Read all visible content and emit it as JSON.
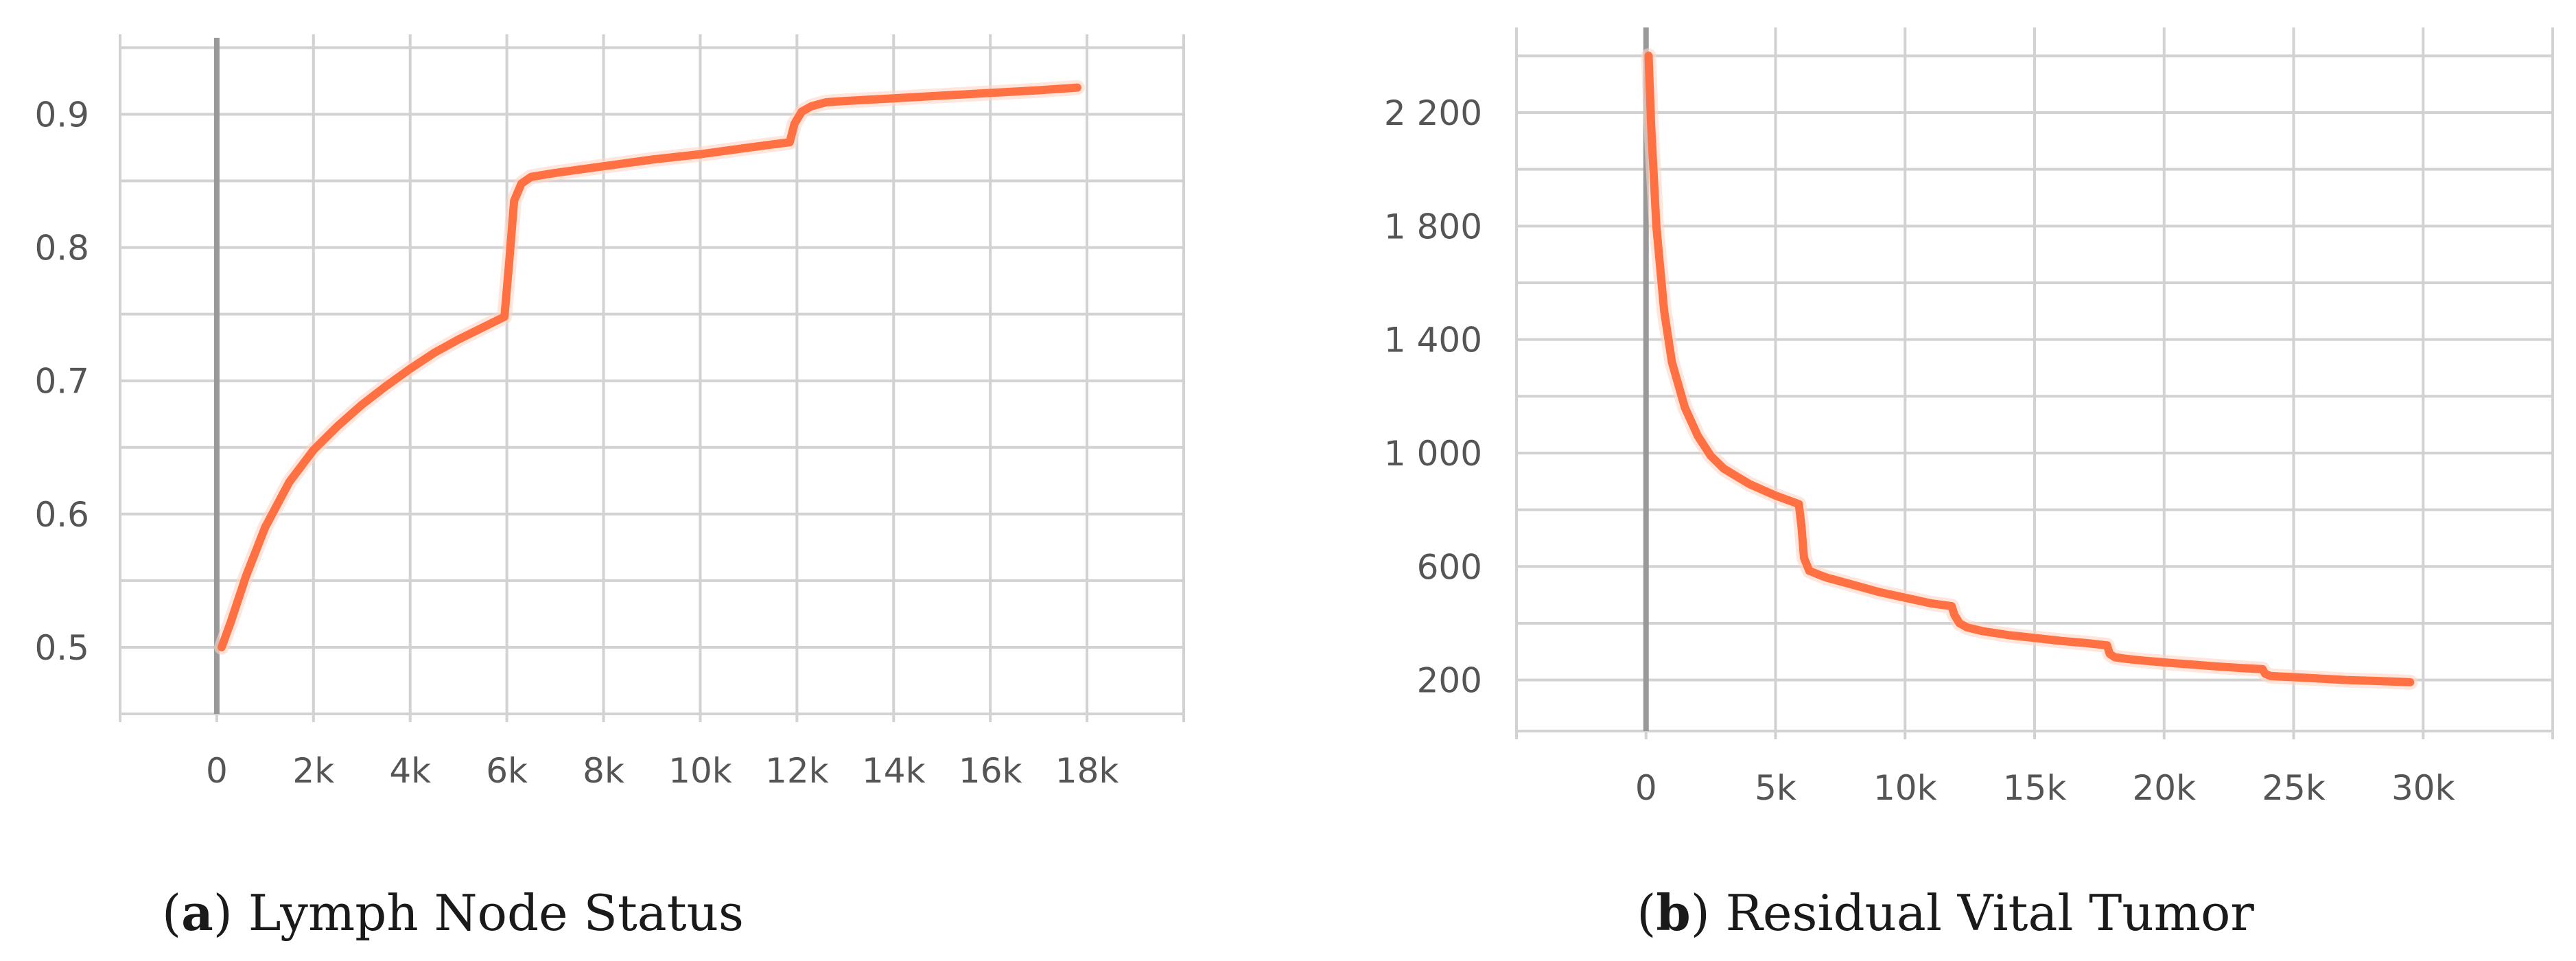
{
  "panels": [
    {
      "caption_open": "(",
      "caption_letter": "a",
      "caption_close": ")",
      "caption_text": " Lymph Node Status"
    },
    {
      "caption_open": "(",
      "caption_letter": "b",
      "caption_close": ")",
      "caption_text": " Residual Vital Tumor"
    }
  ],
  "colors": {
    "line": "#ff7043",
    "grid": "#d2d2d2",
    "zero_axis": "#999999",
    "tick_text": "#555555"
  },
  "chart_data": [
    {
      "type": "line",
      "title": "",
      "xlabel": "",
      "ylabel": "",
      "xlim": [
        -2000,
        20000
      ],
      "ylim": [
        0.45,
        0.96
      ],
      "grid": true,
      "x_ticks": [
        0,
        2000,
        4000,
        6000,
        8000,
        10000,
        12000,
        14000,
        16000,
        18000
      ],
      "x_tick_labels": [
        "0",
        "2k",
        "4k",
        "6k",
        "8k",
        "10k",
        "12k",
        "14k",
        "16k",
        "18k"
      ],
      "y_ticks": [
        0.5,
        0.6,
        0.7,
        0.8,
        0.9
      ],
      "y_tick_labels": [
        "0.5",
        "0.6",
        "0.7",
        "0.8",
        "0.9"
      ],
      "series": [
        {
          "color": "#ff7043",
          "x": [
            100,
            300,
            600,
            1000,
            1500,
            2000,
            2500,
            3000,
            3500,
            4000,
            4500,
            5000,
            5500,
            5950,
            6050,
            6150,
            6300,
            6500,
            7000,
            8000,
            9000,
            10000,
            11000,
            11850,
            11950,
            12100,
            12300,
            12600,
            13000,
            14000,
            15000,
            16000,
            17000,
            17800
          ],
          "y": [
            0.5,
            0.52,
            0.553,
            0.59,
            0.624,
            0.648,
            0.666,
            0.682,
            0.696,
            0.709,
            0.721,
            0.731,
            0.74,
            0.748,
            0.79,
            0.835,
            0.848,
            0.853,
            0.856,
            0.861,
            0.866,
            0.87,
            0.875,
            0.879,
            0.893,
            0.902,
            0.906,
            0.909,
            0.91,
            0.912,
            0.914,
            0.916,
            0.918,
            0.92
          ]
        }
      ]
    },
    {
      "type": "line",
      "title": "",
      "xlabel": "",
      "ylabel": "",
      "xlim": [
        -5000,
        35000
      ],
      "ylim": [
        20,
        2500
      ],
      "grid": true,
      "x_ticks": [
        0,
        5000,
        10000,
        15000,
        20000,
        25000,
        30000
      ],
      "x_tick_labels": [
        "0",
        "5k",
        "10k",
        "15k",
        "20k",
        "25k",
        "30k"
      ],
      "y_ticks": [
        200,
        600,
        1000,
        1400,
        1800,
        2200
      ],
      "y_tick_labels": [
        "200",
        "600",
        "1 000",
        "1 400",
        "1 800",
        "2 200"
      ],
      "series": [
        {
          "color": "#ff7043",
          "x": [
            100,
            200,
            400,
            700,
            1000,
            1500,
            2000,
            2500,
            3000,
            4000,
            5000,
            5900,
            6000,
            6100,
            6300,
            6700,
            7000,
            8000,
            9000,
            10000,
            11000,
            11800,
            11900,
            12100,
            12400,
            13000,
            14000,
            15000,
            16000,
            17000,
            17800,
            17900,
            18100,
            18500,
            19000,
            20000,
            21000,
            22000,
            23000,
            23800,
            23900,
            24100,
            24500,
            25000,
            26000,
            27000,
            28000,
            29000,
            29500
          ],
          "y": [
            2400,
            2150,
            1800,
            1500,
            1320,
            1160,
            1060,
            990,
            945,
            890,
            850,
            820,
            740,
            630,
            585,
            570,
            560,
            535,
            510,
            490,
            470,
            460,
            430,
            400,
            385,
            372,
            358,
            348,
            338,
            330,
            322,
            292,
            280,
            275,
            270,
            262,
            255,
            248,
            242,
            238,
            222,
            214,
            212,
            210,
            205,
            200,
            197,
            194,
            192
          ]
        }
      ]
    }
  ]
}
